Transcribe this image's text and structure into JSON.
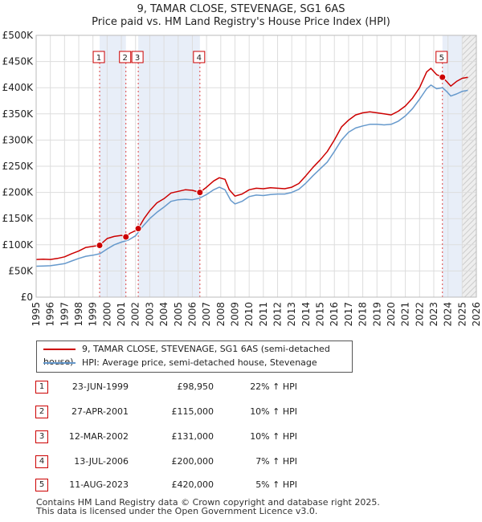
{
  "chart_data": {
    "type": "line",
    "title": "9, TAMAR CLOSE, STEVENAGE, SG1 6AS",
    "subtitle": "Price paid vs. HM Land Registry's House Price Index (HPI)",
    "xlim": [
      1995,
      2026
    ],
    "ylim": [
      0,
      500000
    ],
    "x_ticks": [
      "1995",
      "1996",
      "1997",
      "1998",
      "1999",
      "2000",
      "2001",
      "2002",
      "2003",
      "2004",
      "2005",
      "2006",
      "2007",
      "2008",
      "2009",
      "2010",
      "2011",
      "2012",
      "2013",
      "2014",
      "2015",
      "2016",
      "2017",
      "2018",
      "2019",
      "2020",
      "2021",
      "2022",
      "2023",
      "2024",
      "2025",
      "2026"
    ],
    "y_ticks": [
      {
        "value": 0,
        "label": "£0"
      },
      {
        "value": 50000,
        "label": "£50K"
      },
      {
        "value": 100000,
        "label": "£100K"
      },
      {
        "value": 150000,
        "label": "£150K"
      },
      {
        "value": 200000,
        "label": "£200K"
      },
      {
        "value": 250000,
        "label": "£250K"
      },
      {
        "value": 300000,
        "label": "£300K"
      },
      {
        "value": 350000,
        "label": "£350K"
      },
      {
        "value": 400000,
        "label": "£400K"
      },
      {
        "value": 450000,
        "label": "£450K"
      },
      {
        "value": 500000,
        "label": "£500K"
      }
    ],
    "shaded_intervals": [
      [
        1999.47,
        2001.32
      ],
      [
        2002.19,
        2006.53
      ],
      [
        2023.61,
        2025.0
      ]
    ],
    "hatched_interval": [
      2025.0,
      2026.0
    ],
    "series": [
      {
        "name": "9, TAMAR CLOSE, STEVENAGE, SG1 6AS (semi-detached house)",
        "color": "#cc0000",
        "points": [
          [
            1995.0,
            72000
          ],
          [
            1995.5,
            72500
          ],
          [
            1996.0,
            72000
          ],
          [
            1996.5,
            74000
          ],
          [
            1997.0,
            77000
          ],
          [
            1997.5,
            83000
          ],
          [
            1998.0,
            88000
          ],
          [
            1998.5,
            95000
          ],
          [
            1999.0,
            97000
          ],
          [
            1999.47,
            98950
          ],
          [
            2000.0,
            112000
          ],
          [
            2000.5,
            116000
          ],
          [
            2001.0,
            118000
          ],
          [
            2001.32,
            115000
          ],
          [
            2001.6,
            122000
          ],
          [
            2002.0,
            127000
          ],
          [
            2002.19,
            131000
          ],
          [
            2002.6,
            150000
          ],
          [
            2003.0,
            165000
          ],
          [
            2003.5,
            180000
          ],
          [
            2004.0,
            188000
          ],
          [
            2004.5,
            199000
          ],
          [
            2005.0,
            202000
          ],
          [
            2005.5,
            205000
          ],
          [
            2006.0,
            204000
          ],
          [
            2006.53,
            200000
          ],
          [
            2007.0,
            210000
          ],
          [
            2007.5,
            222000
          ],
          [
            2007.9,
            228000
          ],
          [
            2008.3,
            225000
          ],
          [
            2008.6,
            205000
          ],
          [
            2009.0,
            193000
          ],
          [
            2009.5,
            197000
          ],
          [
            2010.0,
            205000
          ],
          [
            2010.5,
            208000
          ],
          [
            2011.0,
            207000
          ],
          [
            2011.5,
            209000
          ],
          [
            2012.0,
            208000
          ],
          [
            2012.5,
            207000
          ],
          [
            2013.0,
            210000
          ],
          [
            2013.5,
            217000
          ],
          [
            2014.0,
            232000
          ],
          [
            2014.5,
            248000
          ],
          [
            2015.0,
            262000
          ],
          [
            2015.5,
            278000
          ],
          [
            2016.0,
            300000
          ],
          [
            2016.5,
            325000
          ],
          [
            2017.0,
            338000
          ],
          [
            2017.5,
            348000
          ],
          [
            2018.0,
            352000
          ],
          [
            2018.5,
            354000
          ],
          [
            2019.0,
            352000
          ],
          [
            2019.5,
            350000
          ],
          [
            2020.0,
            348000
          ],
          [
            2020.5,
            355000
          ],
          [
            2021.0,
            365000
          ],
          [
            2021.5,
            380000
          ],
          [
            2022.0,
            400000
          ],
          [
            2022.5,
            430000
          ],
          [
            2022.8,
            437000
          ],
          [
            2023.2,
            425000
          ],
          [
            2023.61,
            420000
          ],
          [
            2023.9,
            412000
          ],
          [
            2024.2,
            403000
          ],
          [
            2024.6,
            412000
          ],
          [
            2025.0,
            418000
          ],
          [
            2025.4,
            420000
          ]
        ]
      },
      {
        "name": "HPI: Average price, semi-detached house, Stevenage",
        "color": "#6699cc",
        "points": [
          [
            1995.0,
            59000
          ],
          [
            1995.5,
            59500
          ],
          [
            1996.0,
            60000
          ],
          [
            1996.5,
            62000
          ],
          [
            1997.0,
            64000
          ],
          [
            1997.5,
            69000
          ],
          [
            1998.0,
            74000
          ],
          [
            1998.5,
            78000
          ],
          [
            1999.0,
            80000
          ],
          [
            1999.5,
            83000
          ],
          [
            2000.0,
            92000
          ],
          [
            2000.5,
            100000
          ],
          [
            2001.0,
            105000
          ],
          [
            2001.5,
            109000
          ],
          [
            2002.0,
            117000
          ],
          [
            2002.5,
            135000
          ],
          [
            2003.0,
            150000
          ],
          [
            2003.5,
            162000
          ],
          [
            2004.0,
            172000
          ],
          [
            2004.5,
            183000
          ],
          [
            2005.0,
            186000
          ],
          [
            2005.5,
            187000
          ],
          [
            2006.0,
            186000
          ],
          [
            2006.5,
            189000
          ],
          [
            2007.0,
            196000
          ],
          [
            2007.5,
            205000
          ],
          [
            2007.9,
            210000
          ],
          [
            2008.3,
            205000
          ],
          [
            2008.7,
            185000
          ],
          [
            2009.0,
            178000
          ],
          [
            2009.5,
            183000
          ],
          [
            2010.0,
            192000
          ],
          [
            2010.5,
            195000
          ],
          [
            2011.0,
            194000
          ],
          [
            2011.5,
            196000
          ],
          [
            2012.0,
            197000
          ],
          [
            2012.5,
            197000
          ],
          [
            2013.0,
            200000
          ],
          [
            2013.5,
            206000
          ],
          [
            2014.0,
            218000
          ],
          [
            2014.5,
            232000
          ],
          [
            2015.0,
            245000
          ],
          [
            2015.5,
            258000
          ],
          [
            2016.0,
            278000
          ],
          [
            2016.5,
            300000
          ],
          [
            2017.0,
            315000
          ],
          [
            2017.5,
            323000
          ],
          [
            2018.0,
            327000
          ],
          [
            2018.5,
            330000
          ],
          [
            2019.0,
            330000
          ],
          [
            2019.5,
            329000
          ],
          [
            2020.0,
            330000
          ],
          [
            2020.5,
            336000
          ],
          [
            2021.0,
            346000
          ],
          [
            2021.5,
            360000
          ],
          [
            2022.0,
            378000
          ],
          [
            2022.5,
            398000
          ],
          [
            2022.8,
            405000
          ],
          [
            2023.2,
            398000
          ],
          [
            2023.61,
            400000
          ],
          [
            2023.9,
            393000
          ],
          [
            2024.2,
            384000
          ],
          [
            2024.6,
            388000
          ],
          [
            2025.0,
            393000
          ],
          [
            2025.4,
            395000
          ]
        ]
      }
    ],
    "sales": [
      {
        "id": "1",
        "x": 1999.47,
        "price": 98950
      },
      {
        "id": "2",
        "x": 2001.32,
        "price": 115000
      },
      {
        "id": "3",
        "x": 2002.19,
        "price": 131000
      },
      {
        "id": "4",
        "x": 2006.53,
        "price": 200000
      },
      {
        "id": "5",
        "x": 2023.61,
        "price": 420000
      }
    ]
  },
  "legend": {
    "property": "9, TAMAR CLOSE, STEVENAGE, SG1 6AS (semi-detached house)",
    "hpi": "HPI: Average price, semi-detached house, Stevenage"
  },
  "sales_table": [
    {
      "num": "1",
      "date": "23-JUN-1999",
      "price": "£98,950",
      "hpi": "22% ↑ HPI"
    },
    {
      "num": "2",
      "date": "27-APR-2001",
      "price": "£115,000",
      "hpi": "10% ↑ HPI"
    },
    {
      "num": "3",
      "date": "12-MAR-2002",
      "price": "£131,000",
      "hpi": "10% ↑ HPI"
    },
    {
      "num": "4",
      "date": "13-JUL-2006",
      "price": "£200,000",
      "hpi": "7% ↑ HPI"
    },
    {
      "num": "5",
      "date": "11-AUG-2023",
      "price": "£420,000",
      "hpi": "5% ↑ HPI"
    }
  ],
  "footer": {
    "line1": "Contains HM Land Registry data © Crown copyright and database right 2025.",
    "line2": "This data is licensed under the Open Government Licence v3.0."
  }
}
